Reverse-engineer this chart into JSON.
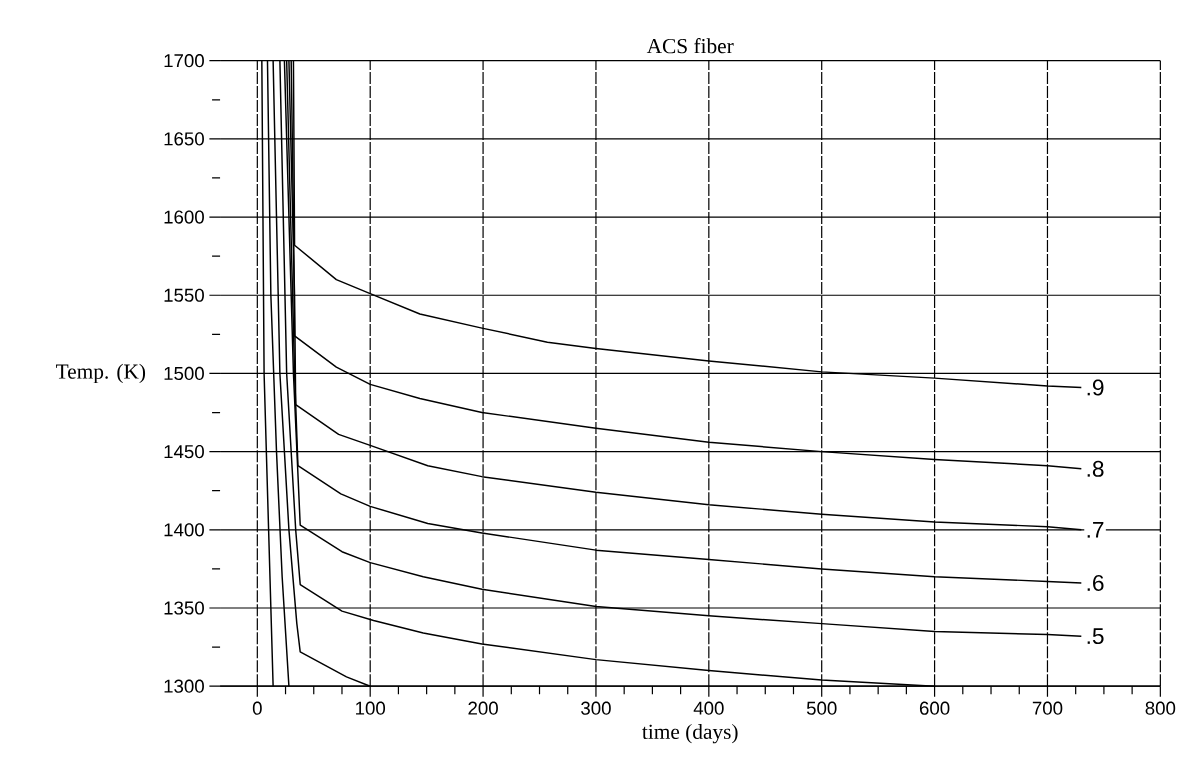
{
  "chart_data": {
    "type": "line",
    "title": "ACS fiber",
    "xlabel": "time (days)",
    "ylabel": "Temp. (K)",
    "xlim": [
      -33,
      800
    ],
    "ylim": [
      1300,
      1700
    ],
    "xticks": [
      0,
      {
        "value": 25,
        "label": null
      },
      {
        "value": 50,
        "label": null
      },
      {
        "value": 75,
        "label": null
      },
      100,
      {
        "value": 125,
        "label": null
      },
      {
        "value": 150,
        "label": null
      },
      {
        "value": 175,
        "label": null
      },
      200,
      {
        "value": 225,
        "label": null
      },
      {
        "value": 250,
        "label": null
      },
      {
        "value": 275,
        "label": null
      },
      300,
      {
        "value": 325,
        "label": null
      },
      {
        "value": 350,
        "label": null
      },
      {
        "value": 375,
        "label": null
      },
      400,
      {
        "value": 425,
        "label": null
      },
      {
        "value": 450,
        "label": null
      },
      {
        "value": 475,
        "label": null
      },
      500,
      {
        "value": 525,
        "label": null
      },
      {
        "value": 550,
        "label": null
      },
      {
        "value": 575,
        "label": null
      },
      600,
      {
        "value": 625,
        "label": null
      },
      {
        "value": 650,
        "label": null
      },
      {
        "value": 675,
        "label": null
      },
      700,
      {
        "value": 725,
        "label": null
      },
      {
        "value": 750,
        "label": null
      },
      {
        "value": 775,
        "label": null
      },
      800
    ],
    "yticks": [
      1300,
      {
        "value": 1325,
        "label": null
      },
      1350,
      {
        "value": 1375,
        "label": null
      },
      1400,
      {
        "value": 1425,
        "label": null
      },
      1450,
      {
        "value": 1475,
        "label": null
      },
      1500,
      {
        "value": 1525,
        "label": null
      },
      1550,
      {
        "value": 1575,
        "label": null
      },
      1600,
      {
        "value": 1625,
        "label": null
      },
      1650,
      {
        "value": 1675,
        "label": null
      },
      1700
    ],
    "grid": true,
    "marker": "none",
    "line_style": "solid",
    "series": [
      {
        "color": "#000000",
        "x": [
          4,
          6,
          10,
          14
        ],
        "values": [
          1700,
          1500,
          1400,
          1300
        ]
      },
      {
        "color": "#000000",
        "x": [
          9,
          12,
          17,
          22,
          28
        ],
        "values": [
          1700,
          1550,
          1450,
          1370,
          1300
        ]
      },
      {
        "color": "#000000",
        "x": [
          14,
          20,
          28,
          35,
          38,
          79,
          100
        ],
        "values": [
          1700,
          1500,
          1400,
          1340,
          1322,
          1306,
          1300
        ]
      },
      {
        "color": "#000000",
        "x": [
          20,
          26,
          34,
          38,
          75,
          103,
          147,
          199,
          300,
          400,
          500,
          600
        ],
        "values": [
          1700,
          1500,
          1400,
          1365,
          1348,
          1342,
          1334,
          1327,
          1317,
          1310,
          1304,
          1300
        ]
      },
      {
        "name": ".5",
        "color": "#000000",
        "x": [
          24,
          32,
          38,
          75,
          100,
          147,
          199,
          300,
          400,
          500,
          600,
          700,
          730
        ],
        "values": [
          1700,
          1500,
          1403,
          1386,
          1379,
          1370,
          1362,
          1351,
          1345,
          1340,
          1335,
          1333,
          1332
        ]
      },
      {
        "name": ".6",
        "color": "#000000",
        "x": [
          26,
          33,
          36,
          74,
          100,
          151,
          199,
          300,
          400,
          500,
          600,
          700,
          730
        ],
        "values": [
          1700,
          1500,
          1441,
          1423,
          1415,
          1404,
          1398,
          1387,
          1381,
          1375,
          1370,
          1367,
          1366
        ]
      },
      {
        "name": ".7",
        "color": "#000000",
        "x": [
          28,
          33,
          34,
          72,
          100,
          151,
          199,
          300,
          400,
          500,
          600,
          700,
          730
        ],
        "values": [
          1700,
          1550,
          1480,
          1461,
          1454,
          1441,
          1434,
          1424,
          1416,
          1410,
          1405,
          1402,
          1400
        ]
      },
      {
        "name": ".8",
        "color": "#000000",
        "x": [
          30,
          32,
          33,
          70,
          100,
          144,
          199,
          300,
          400,
          500,
          600,
          700,
          730
        ],
        "values": [
          1700,
          1600,
          1524,
          1504,
          1493,
          1484,
          1475,
          1465,
          1456,
          1450,
          1445,
          1441,
          1439
        ]
      },
      {
        "name": ".9",
        "color": "#000000",
        "x": [
          32,
          33,
          70,
          100,
          144,
          199,
          257,
          300,
          400,
          500,
          600,
          700,
          730
        ],
        "values": [
          1700,
          1582,
          1560,
          1551,
          1538,
          1529,
          1520,
          1516,
          1508,
          1501,
          1497,
          1492,
          1491
        ]
      }
    ]
  }
}
